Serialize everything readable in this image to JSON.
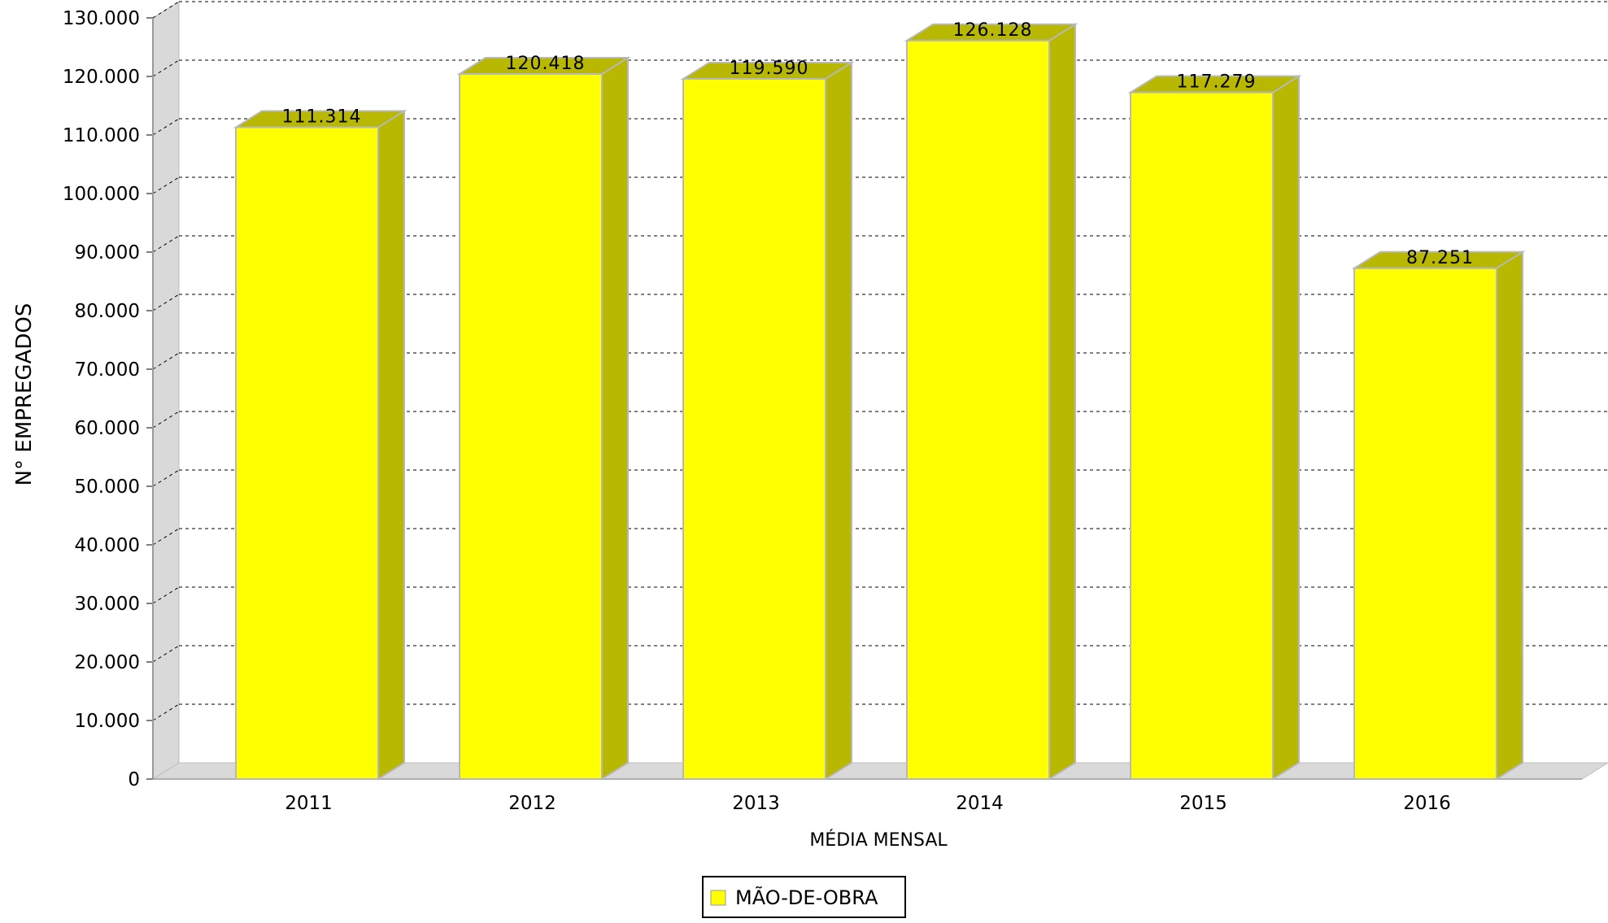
{
  "chart_data": {
    "type": "bar",
    "title": "",
    "xlabel": "MÉDIA MENSAL",
    "ylabel": "N° EMPREGADOS",
    "categories": [
      "2011",
      "2012",
      "2013",
      "2014",
      "2015",
      "2016"
    ],
    "series": [
      {
        "name": "MÃO-DE-OBRA",
        "values": [
          111314,
          120418,
          119590,
          126128,
          117279,
          87251
        ]
      }
    ],
    "value_labels": [
      "111.314",
      "120.418",
      "119.590",
      "126.128",
      "117.279",
      "87.251"
    ],
    "ylim": [
      0,
      130000
    ],
    "yticks": [
      0,
      10000,
      20000,
      30000,
      40000,
      50000,
      60000,
      70000,
      80000,
      90000,
      100000,
      110000,
      120000,
      130000
    ],
    "ytick_labels": [
      "0",
      "10.000",
      "20.000",
      "30.000",
      "40.000",
      "50.000",
      "60.000",
      "70.000",
      "80.000",
      "90.000",
      "100.000",
      "110.000",
      "120.000",
      "130.000"
    ],
    "grid": true,
    "grid_style": "dashed",
    "style": "3d",
    "legend": "bottom-center",
    "colors": {
      "bar_front": "#ffff00",
      "bar_side": "#b8b800",
      "bar_edge": "#b8b8b8",
      "wall": "#d9d9d9",
      "grid": "#000000",
      "text": "#000000"
    }
  }
}
